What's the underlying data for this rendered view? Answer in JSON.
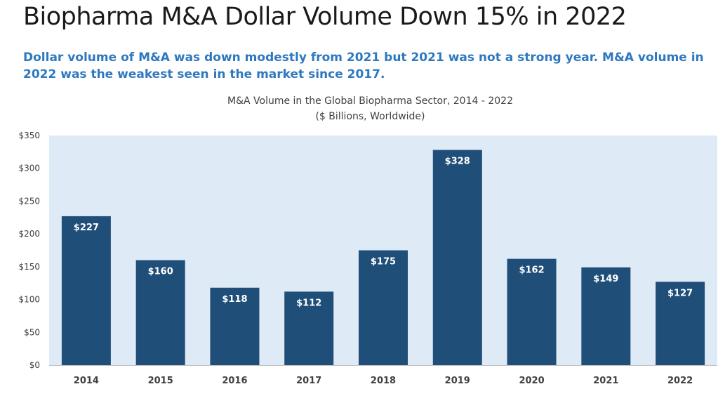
{
  "header": {
    "title": "Biopharma M&A Dollar Volume Down 15% in 2022",
    "subtitle": "Dollar volume of M&A was down modestly from 2021 but 2021 was not a strong year. M&A volume in 2022 was the weakest seen in the market since 2017."
  },
  "chart_data": {
    "type": "bar",
    "title": "M&A Volume in the Global Biopharma Sector, 2014 - 2022",
    "subtitle": "($ Billions, Worldwide)",
    "xlabel": "",
    "ylabel": "",
    "categories": [
      "2014",
      "2015",
      "2016",
      "2017",
      "2018",
      "2019",
      "2020",
      "2021",
      "2022"
    ],
    "values": [
      227,
      160,
      118,
      112,
      175,
      328,
      162,
      149,
      127
    ],
    "value_labels": [
      "$227",
      "$160",
      "$118",
      "$112",
      "$175",
      "$328",
      "$162",
      "$149",
      "$127"
    ],
    "ylim": [
      0,
      350
    ],
    "yticks": [
      0,
      50,
      100,
      150,
      200,
      250,
      300,
      350
    ],
    "ytick_labels": [
      "$0",
      "$50",
      "$100",
      "$150",
      "$200",
      "$250",
      "$300",
      "$350"
    ],
    "grid": false,
    "legend": "none",
    "colors": {
      "bar": "#1f4e79",
      "plot_background": "#deeaf6",
      "label_text": "#ffffff"
    }
  }
}
